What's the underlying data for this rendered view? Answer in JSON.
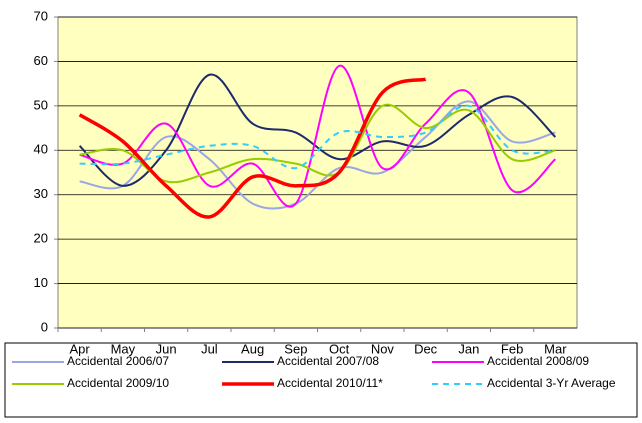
{
  "chart_data": {
    "type": "line",
    "categories": [
      "Apr",
      "May",
      "Jun",
      "Jul",
      "Aug",
      "Sep",
      "Oct",
      "Nov",
      "Dec",
      "Jan",
      "Feb",
      "Mar"
    ],
    "ylim": [
      0,
      70
    ],
    "yticks": [
      0,
      10,
      20,
      30,
      40,
      50,
      60,
      70
    ],
    "grid": true,
    "smooth": true,
    "series": [
      {
        "name": "Accidental 2006/07",
        "color": "#9aa6e6",
        "values": [
          33,
          32,
          43,
          38,
          28,
          28,
          36,
          35,
          43,
          51,
          42,
          44
        ]
      },
      {
        "name": "Accidental 2007/08",
        "color": "#1e2a6b",
        "values": [
          41,
          32,
          40,
          57,
          46,
          44,
          38,
          42,
          41,
          48,
          52,
          43
        ]
      },
      {
        "name": "Accidental 2008/09",
        "color": "#ff00ff",
        "values": [
          39,
          37,
          46,
          32,
          37,
          28,
          59,
          36,
          46,
          53,
          31,
          38
        ]
      },
      {
        "name": "Accidental 2009/10",
        "color": "#99cc00",
        "values": [
          39,
          40,
          33,
          35,
          38,
          37,
          35,
          50,
          45,
          49,
          38,
          40
        ]
      },
      {
        "name": "Accidental 2010/11*",
        "color": "#ff0000",
        "values": [
          48,
          42,
          32,
          25,
          34,
          32,
          35,
          53,
          56,
          null,
          null,
          null
        ]
      },
      {
        "name": "Accidental 3-Yr Average",
        "color": "#33ccff",
        "dashed": true,
        "values": [
          37,
          37,
          39,
          41,
          41,
          36,
          44,
          43,
          44,
          50,
          40,
          40
        ]
      }
    ]
  }
}
